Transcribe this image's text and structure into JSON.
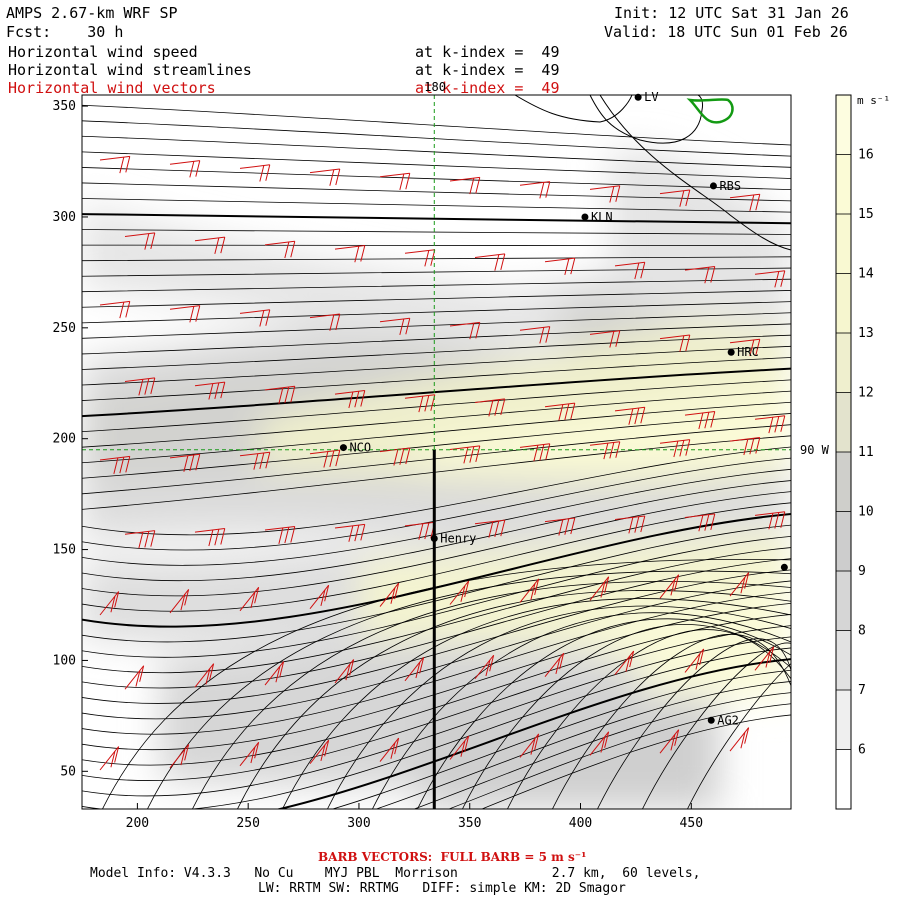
{
  "header": {
    "model_title": "AMPS 2.67-km WRF SP",
    "forecast_label": "Fcst:",
    "forecast_hours": "30 h",
    "init_label": "Init:",
    "init_time": "12 UTC Sat 31 Jan 26",
    "valid_label": "Valid:",
    "valid_time": "18 UTC Sun 01 Feb 26",
    "fields": [
      {
        "name": "Horizontal wind speed",
        "level": "at k-index =  49"
      },
      {
        "name": "Horizontal wind streamlines",
        "level": "at k-index =  49"
      },
      {
        "name": "Horizontal wind vectors",
        "level": "at k-index =  49"
      }
    ]
  },
  "chart_data": {
    "type": "heatmap",
    "title": "Horizontal wind speed / streamlines / vectors at k-index = 49",
    "x_ticks": [
      200,
      250,
      300,
      350,
      400,
      450
    ],
    "xlim": [
      175,
      495
    ],
    "y_ticks": [
      50,
      100,
      150,
      200,
      250,
      300,
      350
    ],
    "ylim": [
      33,
      355
    ],
    "colorbar": {
      "unit": "m s⁻¹",
      "ticks": [
        6,
        7,
        8,
        9,
        10,
        11,
        12,
        13,
        14,
        15,
        16
      ],
      "range": [
        5,
        17
      ],
      "colors": [
        "#ffffff",
        "#efefef",
        "#e2e2e2",
        "#d6d6d6",
        "#cdcdcd",
        "#cfcfcb",
        "#e3e3cd",
        "#efefce",
        "#f6f6cf",
        "#f9f9d2",
        "#fbfbd6",
        "#fdfde0"
      ]
    },
    "meridian_label": "180",
    "parallel_label": "90 W",
    "meridian_x": 334,
    "parallel_y": 195,
    "cross_section": {
      "x": 334,
      "y_from": 33,
      "y_to": 195
    },
    "stations": [
      {
        "name": "LV",
        "x": 426,
        "y": 354
      },
      {
        "name": "RBS",
        "x": 460,
        "y": 314
      },
      {
        "name": "KLN",
        "x": 402,
        "y": 300
      },
      {
        "name": "HRC",
        "x": 468,
        "y": 239
      },
      {
        "name": "NCO",
        "x": 293,
        "y": 196
      },
      {
        "name": "Henry",
        "x": 334,
        "y": 155
      },
      {
        "name": "",
        "x": 492,
        "y": 142
      },
      {
        "name": "AG2",
        "x": 459,
        "y": 73
      }
    ]
  },
  "footer": {
    "barb_note": "BARB VECTORS:  FULL BARB = 5 m s⁻¹",
    "model_info": "Model Info: V4.3.3   No Cu    MYJ PBL  Morrison            2.7 km,  60 levels,",
    "physics": "LW: RRTM SW: RRTMG   DIFF: simple KM: 2D Smagor"
  }
}
